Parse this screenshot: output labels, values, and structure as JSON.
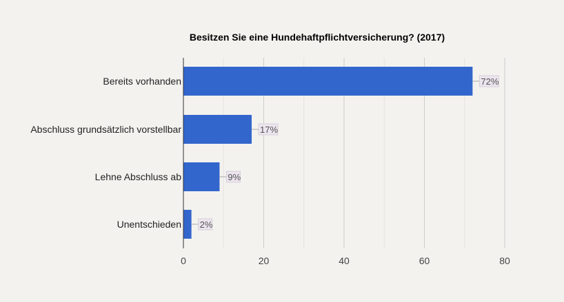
{
  "chart_data": {
    "type": "bar",
    "orientation": "horizontal",
    "title": "Besitzen Sie eine Hundehaftpflichtversicherung? (2017)",
    "categories": [
      "Bereits vorhanden",
      "Abschluss grundsätzlich vorstellbar",
      "Lehne Abschluss ab",
      "Unentschieden"
    ],
    "values": [
      72,
      17,
      9,
      2
    ],
    "data_labels": [
      "72%",
      "17%",
      "9%",
      "2%"
    ],
    "xlim": [
      0,
      80
    ],
    "xticks": [
      0,
      20,
      40,
      60,
      80
    ],
    "xtick_labels": [
      "0",
      "20",
      "40",
      "60",
      "80"
    ],
    "grid": true,
    "colors": {
      "bar": "#3366cc",
      "background": "#f3f2ef",
      "label_bg": "#ece4ee"
    }
  }
}
